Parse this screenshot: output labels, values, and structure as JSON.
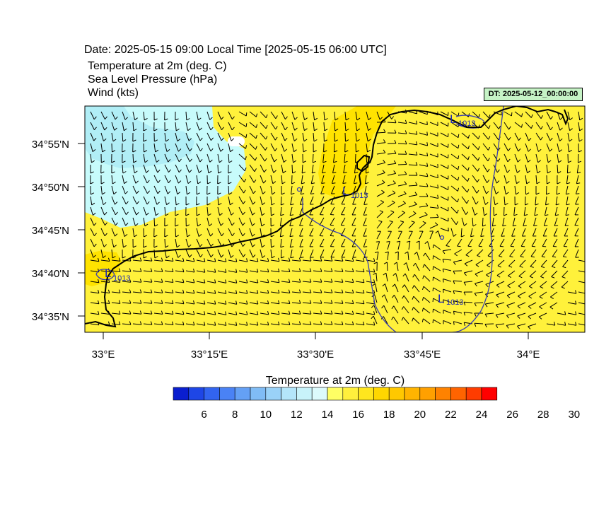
{
  "header": {
    "date_line": "Date: 2025-05-15  09:00 Local Time [2025-05-15  06:00 UTC]",
    "field_1": "Temperature at 2m   (deg. C)",
    "field_2": "Sea Level Pressure   (hPa)",
    "field_3": "Wind   (kts)",
    "dt_badge": "DT: 2025-05-12_00:00:00"
  },
  "map": {
    "lat_labels": [
      "34°55'N",
      "34°50'N",
      "34°45'N",
      "34°40'N",
      "34°35'N"
    ],
    "lon_labels": [
      "33°E",
      "33°15'E",
      "33°30'E",
      "33°45'E",
      "34°E"
    ],
    "pressure_lows": [
      {
        "symbol": "L",
        "value": "1013"
      },
      {
        "symbol": "L",
        "value": "1013"
      },
      {
        "symbol": "L",
        "value": "1013"
      },
      {
        "symbol": "L",
        "value": "1013"
      }
    ],
    "colors": {
      "warm_fill": "#fff13b",
      "warmer_fill": "#ffe300",
      "cool_fill": "#c7fbfb",
      "cooler_fill": "#b1eef6",
      "coast": "#000000",
      "isobar": "#3a3fb0"
    }
  },
  "colorbar": {
    "title": "Temperature at 2m  (deg. C)",
    "labels": [
      "6",
      "8",
      "10",
      "12",
      "14",
      "16",
      "18",
      "20",
      "22",
      "24",
      "26",
      "28",
      "30"
    ],
    "colors": [
      "#0a1ecf",
      "#1e46e6",
      "#3264f0",
      "#4a82f5",
      "#64a0f5",
      "#80bcf5",
      "#9ad2f8",
      "#b4e6fa",
      "#c8f3fa",
      "#dcfafc",
      "#ffff64",
      "#fff03c",
      "#ffe61e",
      "#ffd700",
      "#ffc800",
      "#ffb400",
      "#ffa000",
      "#ff8200",
      "#ff6400",
      "#ff3c00",
      "#ff0000"
    ]
  }
}
